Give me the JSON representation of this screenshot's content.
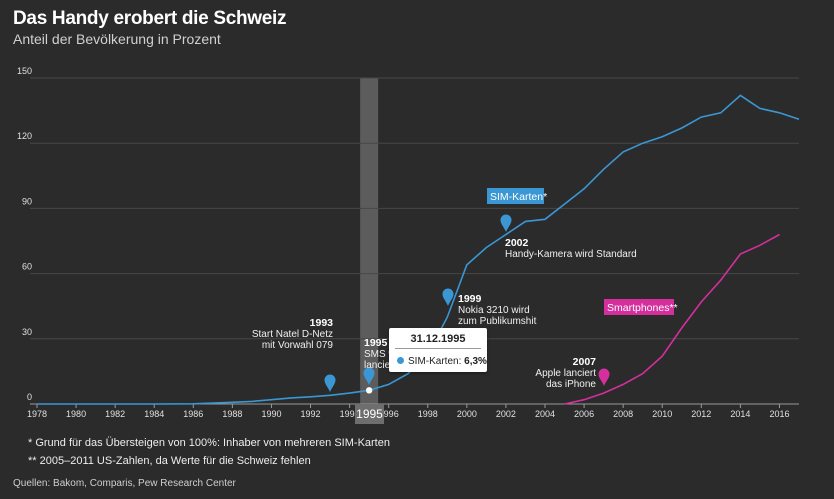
{
  "header": {
    "title": "Das Handy erobert die Schweiz",
    "subtitle": "Anteil der Bevölkerung in Prozent"
  },
  "chart_data": {
    "type": "line",
    "title": "Das Handy erobert die Schweiz",
    "ylabel": "Anteil der Bevölkerung in Prozent",
    "xlim": [
      1978,
      2017
    ],
    "ylim": [
      0,
      150
    ],
    "yticks": [
      0,
      30,
      60,
      90,
      120,
      150
    ],
    "xticks": [
      1978,
      1980,
      1982,
      1984,
      1986,
      1988,
      1990,
      1992,
      1994,
      1996,
      1998,
      2000,
      2002,
      2004,
      2006,
      2008,
      2010,
      2012,
      2014,
      2016
    ],
    "grid": true,
    "series": [
      {
        "name": "SIM-Karten*",
        "color": "#3a97d4",
        "x": [
          1978,
          1980,
          1982,
          1984,
          1986,
          1987,
          1988,
          1989,
          1990,
          1991,
          1992,
          1993,
          1994,
          1995,
          1996,
          1997,
          1998,
          1999,
          2000,
          2001,
          2002,
          2003,
          2004,
          2005,
          2006,
          2007,
          2008,
          2009,
          2010,
          2011,
          2012,
          2013,
          2014,
          2015,
          2016,
          2017
        ],
        "y": [
          0,
          0,
          0,
          0,
          0.1,
          0.4,
          0.8,
          1.2,
          2.0,
          2.8,
          3.3,
          4.0,
          5.0,
          6.3,
          9.0,
          14.0,
          23.0,
          40.0,
          64.0,
          72.0,
          78.0,
          84.0,
          85.0,
          92.0,
          99.0,
          108.0,
          116.0,
          120.0,
          123.0,
          127.0,
          132.0,
          134.0,
          142.0,
          136.0,
          134.0,
          131.0
        ]
      },
      {
        "name": "Smartphones**",
        "color": "#d42f9c",
        "x": [
          2005,
          2006,
          2007,
          2008,
          2009,
          2010,
          2011,
          2012,
          2013,
          2014,
          2015,
          2016
        ],
        "y": [
          0,
          2,
          5,
          9,
          14,
          22,
          35,
          47,
          57,
          69,
          73,
          78
        ]
      }
    ],
    "legend": [
      {
        "label": "SIM-Karten*",
        "color": "#3a97d4"
      },
      {
        "label": "Smartphones**",
        "color": "#d42f9c"
      }
    ],
    "annotations": [
      {
        "id": "a1993",
        "year": "1993",
        "lines": [
          "Start Natel D-Netz",
          "mit Vorwahl 079"
        ],
        "color": "#3a97d4"
      },
      {
        "id": "a1995",
        "year": "1995",
        "lines": [
          "SMS w",
          "lancie"
        ],
        "color": "#3a97d4"
      },
      {
        "id": "a1999",
        "year": "1999",
        "lines": [
          "Nokia 3210 wird",
          "zum Publikumshit"
        ],
        "color": "#3a97d4"
      },
      {
        "id": "a2002",
        "year": "2002",
        "lines": [
          "Handy-Kamera wird Standard"
        ],
        "color": "#3a97d4"
      },
      {
        "id": "a2007",
        "year": "2007",
        "lines": [
          "Apple lanciert",
          "das iPhone"
        ],
        "color": "#d42f9c"
      }
    ],
    "highlight": {
      "year": "1995",
      "date": "31.12.1995",
      "series": "SIM-Karten",
      "value_label": "6,3%",
      "value": 6.3
    }
  },
  "footnotes": [
    "* Grund für das Übersteigen von 100%: Inhaber von mehreren SIM-Karten",
    "** 2005–2011 US-Zahlen, da Werte für die Schweiz fehlen"
  ],
  "source": "Quellen: Bakom, Comparis, Pew Research Center"
}
